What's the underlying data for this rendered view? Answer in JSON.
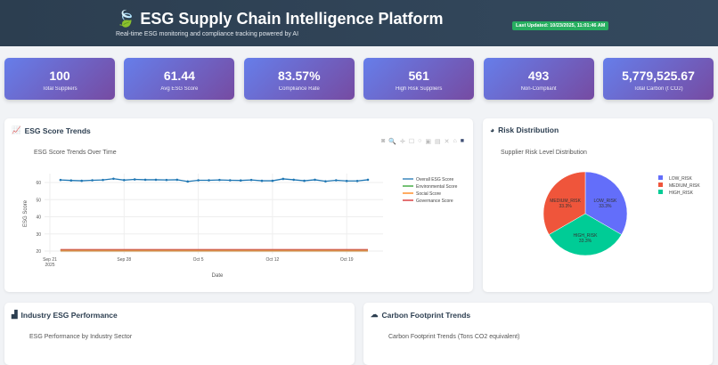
{
  "header": {
    "title": "ESG Supply Chain Intelligence Platform",
    "subtitle": "Real-time ESG monitoring and compliance tracking powered by AI",
    "last_updated": "Last Updated: 10/23/2025, 11:01:46 AM",
    "icon": "leaf-icon"
  },
  "metrics": [
    {
      "value": "100",
      "label": "Total Suppliers"
    },
    {
      "value": "61.44",
      "label": "Avg ESG Score"
    },
    {
      "value": "83.57%",
      "label": "Compliance Rate"
    },
    {
      "value": "561",
      "label": "High Risk Suppliers"
    },
    {
      "value": "493",
      "label": "Non-Compliant"
    },
    {
      "value": "5,779,525.67",
      "label": "Total Carbon (t CO2)"
    }
  ],
  "panels": {
    "trends": "ESG Score Trends",
    "risk": "Risk Distribution",
    "industry": "Industry ESG Performance",
    "carbon": "Carbon Footprint Trends"
  },
  "bottom": {
    "industry_title": "ESG Performance by Industry Sector",
    "carbon_title": "Carbon Footprint Trends (Tons CO2 equivalent)"
  },
  "chart_data": [
    {
      "type": "line",
      "title": "ESG Score Trends Over Time",
      "xlabel": "Date",
      "ylabel": "ESG Score",
      "ylim": [
        17.5,
        65
      ],
      "yticks": [
        20,
        30,
        40,
        50,
        60
      ],
      "xticks": [
        "Sep 21\n2025",
        "Sep 28",
        "Oct 5",
        "Oct 12",
        "Oct 19"
      ],
      "x_start": "2025-09-22",
      "x_end": "2025-10-21",
      "grid": true,
      "legend": "right",
      "series": [
        {
          "name": "Overall ESG Score",
          "color": "#1f77b4",
          "markers": true,
          "values": [
            61.5,
            61.2,
            61,
            61.3,
            61.5,
            62.2,
            61.4,
            61.8,
            61.6,
            61.6,
            61.5,
            61.6,
            60.6,
            61.3,
            61.3,
            61.5,
            61.3,
            61.2,
            61.5,
            61,
            61,
            62.1,
            61.6,
            61,
            61.6,
            60.7,
            61.3,
            60.9,
            60.9,
            61.6
          ]
        },
        {
          "name": "Environmental Score",
          "color": "#2ca02c",
          "constant": 20.6
        },
        {
          "name": "Social Score",
          "color": "#ff7f0e",
          "constant": 20.3
        },
        {
          "name": "Governance Score",
          "color": "#d62728",
          "constant": 20.8
        }
      ]
    },
    {
      "type": "pie",
      "title": "Supplier Risk Level Distribution",
      "legend": "right",
      "slices": [
        {
          "label": "LOW_RISK",
          "value": 33.3,
          "text": "33.3%",
          "color": "#636efa"
        },
        {
          "label": "HIGH_RISK",
          "value": 33.3,
          "text": "33.3%",
          "color": "#00cc96"
        },
        {
          "label": "MEDIUM_RISK",
          "value": 33.3,
          "text": "33.3%",
          "color": "#ef553b"
        }
      ]
    }
  ]
}
